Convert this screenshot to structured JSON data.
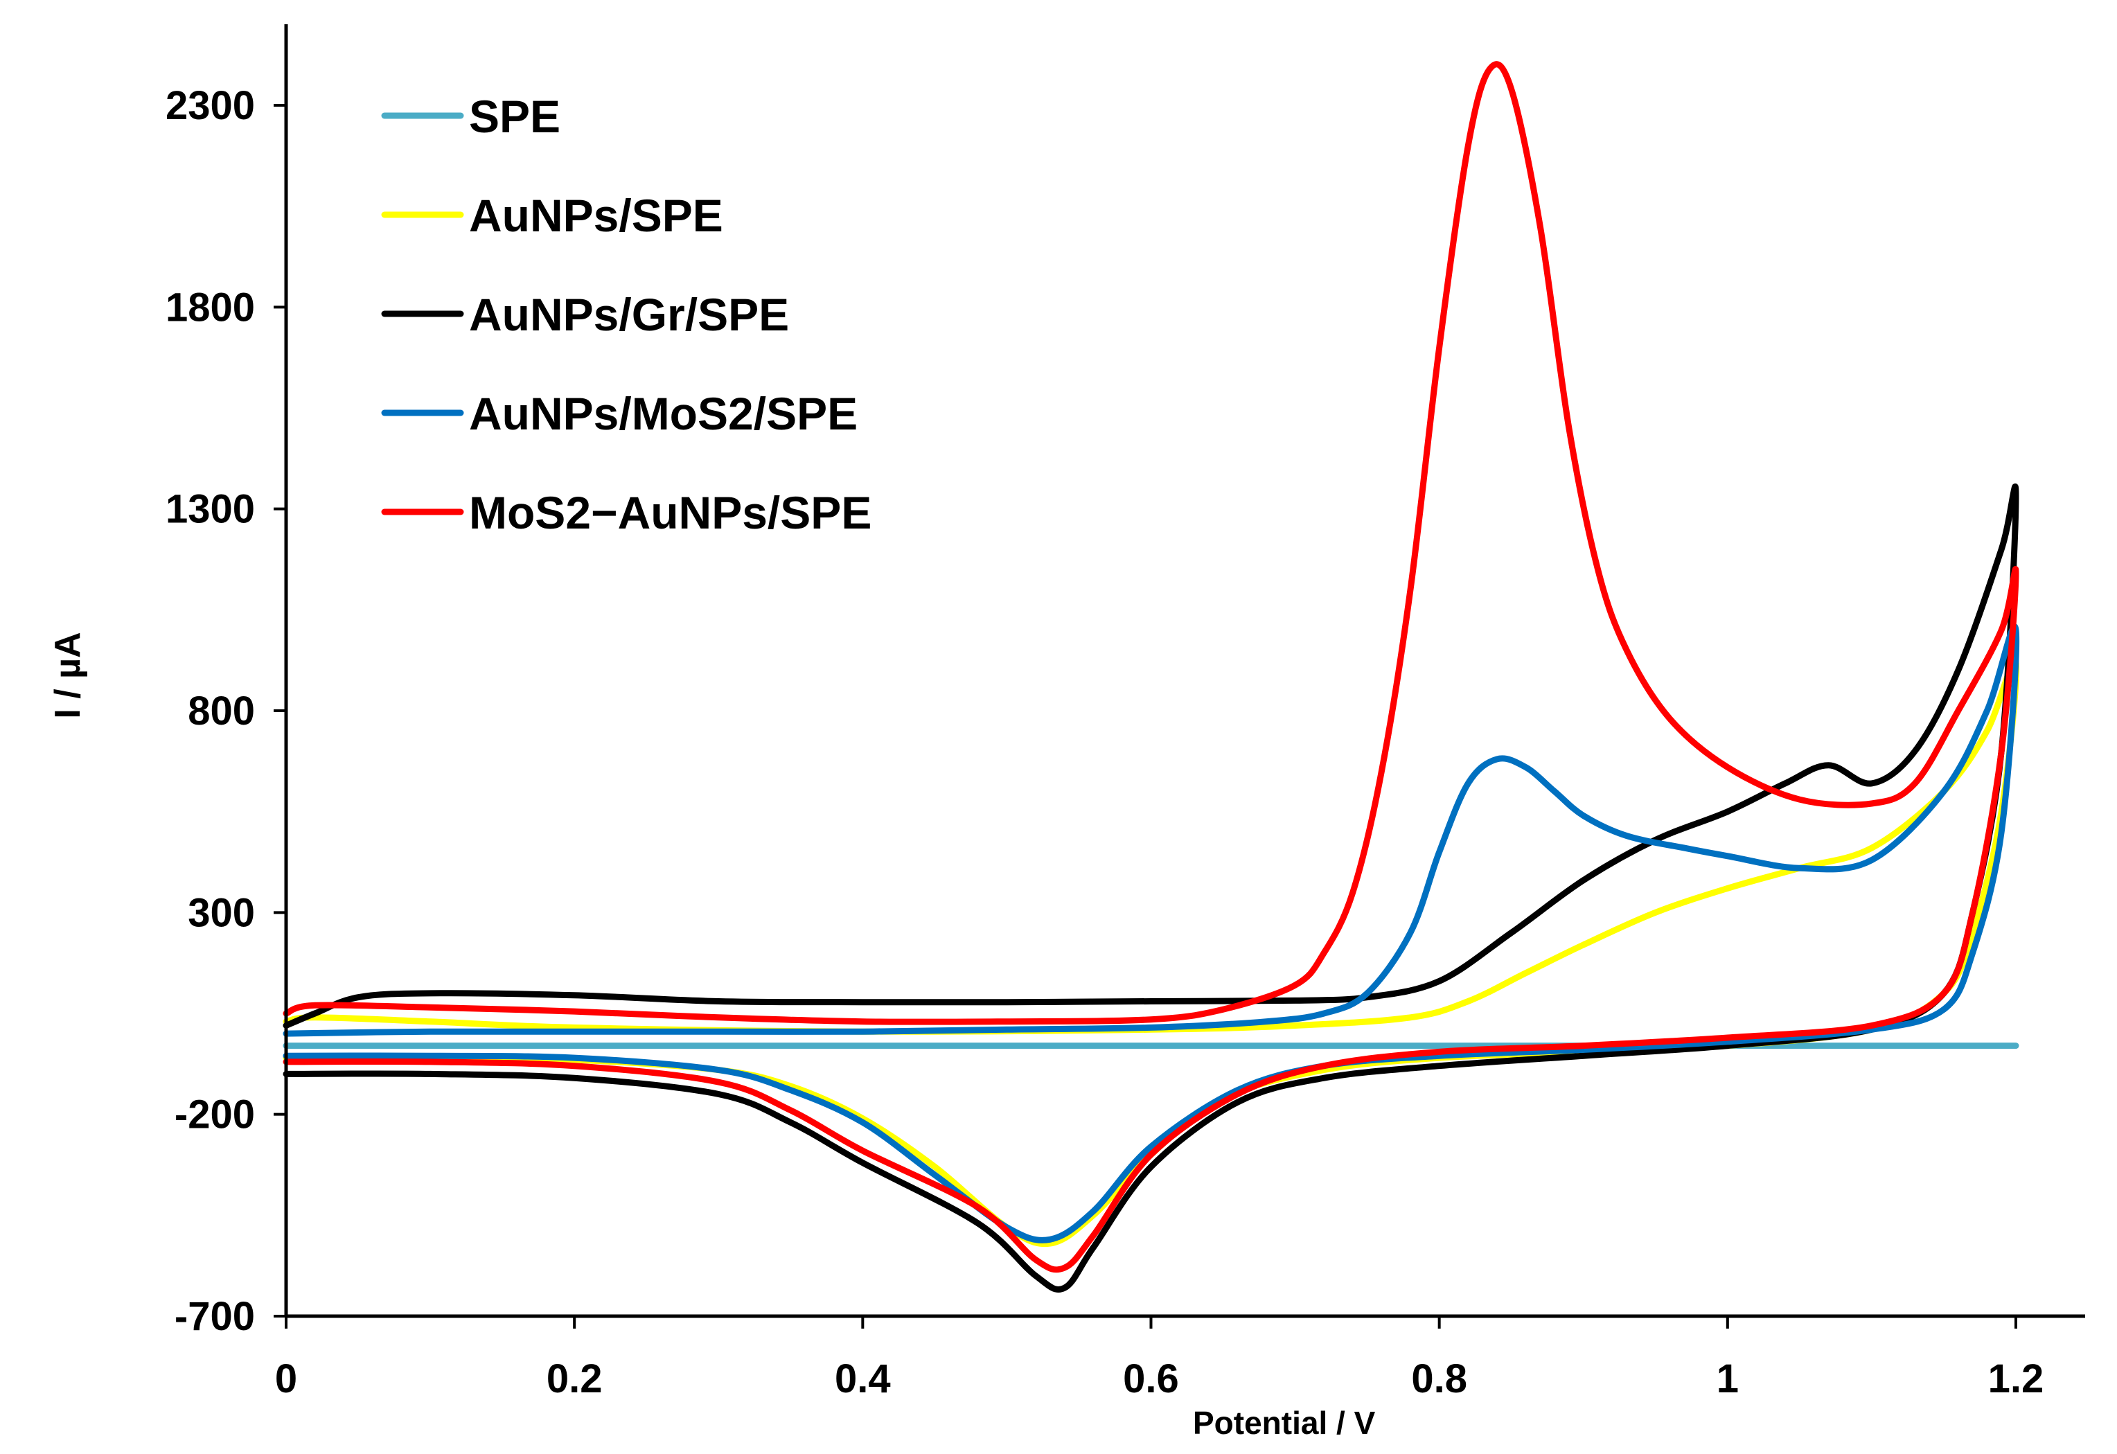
{
  "chart_data": {
    "type": "line",
    "title": "",
    "xlabel": "Potential / V",
    "ylabel": "I / µA",
    "xlim": [
      0,
      1.2
    ],
    "ylim": [
      -700,
      2500
    ],
    "x_ticks": [
      0,
      0.2,
      0.4,
      0.6,
      0.8,
      1,
      1.2
    ],
    "x_tick_labels": [
      "0",
      "0.2",
      "0.4",
      "0.6",
      "0.8",
      "1",
      "1.2"
    ],
    "y_ticks": [
      -700,
      -200,
      300,
      800,
      1300,
      1800,
      2300
    ],
    "y_tick_labels": [
      "-700",
      "-200",
      "300",
      "800",
      "1300",
      "1800",
      "2300"
    ],
    "grid": false,
    "legend_position": "top-left",
    "series": [
      {
        "name": "SPE",
        "color": "#4bacc6",
        "points": [
          [
            0,
            -30
          ],
          [
            0.3,
            -30
          ],
          [
            0.6,
            -30
          ],
          [
            0.9,
            -30
          ],
          [
            1.2,
            -30
          ]
        ]
      },
      {
        "name": "AuNPs/SPE",
        "color": "#ffff00",
        "points": [
          [
            0,
            30
          ],
          [
            0.02,
            40
          ],
          [
            0.1,
            30
          ],
          [
            0.2,
            15
          ],
          [
            0.4,
            5
          ],
          [
            0.6,
            10
          ],
          [
            0.7,
            20
          ],
          [
            0.78,
            40
          ],
          [
            0.82,
            80
          ],
          [
            0.86,
            150
          ],
          [
            0.9,
            220
          ],
          [
            0.95,
            300
          ],
          [
            1.0,
            360
          ],
          [
            1.05,
            410
          ],
          [
            1.1,
            460
          ],
          [
            1.15,
            600
          ],
          [
            1.18,
            750
          ],
          [
            1.2,
            920
          ],
          [
            1.19,
            550
          ],
          [
            1.17,
            250
          ],
          [
            1.15,
            100
          ],
          [
            1.1,
            10
          ],
          [
            1.0,
            -30
          ],
          [
            0.9,
            -45
          ],
          [
            0.8,
            -60
          ],
          [
            0.72,
            -90
          ],
          [
            0.65,
            -160
          ],
          [
            0.6,
            -300
          ],
          [
            0.56,
            -450
          ],
          [
            0.53,
            -520
          ],
          [
            0.5,
            -480
          ],
          [
            0.45,
            -330
          ],
          [
            0.4,
            -210
          ],
          [
            0.35,
            -130
          ],
          [
            0.3,
            -90
          ],
          [
            0.2,
            -65
          ],
          [
            0.1,
            -60
          ],
          [
            0,
            -60
          ]
        ]
      },
      {
        "name": "AuNPs/Gr/SPE",
        "color": "#000000",
        "points": [
          [
            0,
            20
          ],
          [
            0.02,
            50
          ],
          [
            0.05,
            90
          ],
          [
            0.1,
            100
          ],
          [
            0.2,
            95
          ],
          [
            0.3,
            80
          ],
          [
            0.4,
            78
          ],
          [
            0.5,
            78
          ],
          [
            0.6,
            80
          ],
          [
            0.7,
            82
          ],
          [
            0.75,
            90
          ],
          [
            0.8,
            130
          ],
          [
            0.85,
            250
          ],
          [
            0.9,
            380
          ],
          [
            0.95,
            480
          ],
          [
            1.0,
            550
          ],
          [
            1.04,
            620
          ],
          [
            1.07,
            665
          ],
          [
            1.1,
            620
          ],
          [
            1.13,
            700
          ],
          [
            1.16,
            900
          ],
          [
            1.19,
            1200
          ],
          [
            1.2,
            1330
          ],
          [
            1.19,
            700
          ],
          [
            1.17,
            300
          ],
          [
            1.15,
            100
          ],
          [
            1.1,
            10
          ],
          [
            1.0,
            -30
          ],
          [
            0.9,
            -55
          ],
          [
            0.8,
            -80
          ],
          [
            0.72,
            -110
          ],
          [
            0.66,
            -170
          ],
          [
            0.6,
            -330
          ],
          [
            0.56,
            -530
          ],
          [
            0.54,
            -630
          ],
          [
            0.52,
            -600
          ],
          [
            0.48,
            -470
          ],
          [
            0.4,
            -320
          ],
          [
            0.35,
            -220
          ],
          [
            0.3,
            -150
          ],
          [
            0.2,
            -110
          ],
          [
            0.1,
            -100
          ],
          [
            0,
            -100
          ]
        ]
      },
      {
        "name": "AuNPs/MoS2/SPE",
        "color": "#0070c0",
        "points": [
          [
            0,
            0
          ],
          [
            0.1,
            5
          ],
          [
            0.2,
            5
          ],
          [
            0.3,
            5
          ],
          [
            0.4,
            5
          ],
          [
            0.5,
            10
          ],
          [
            0.6,
            15
          ],
          [
            0.68,
            30
          ],
          [
            0.72,
            50
          ],
          [
            0.75,
            100
          ],
          [
            0.78,
            250
          ],
          [
            0.8,
            450
          ],
          [
            0.82,
            620
          ],
          [
            0.84,
            680
          ],
          [
            0.86,
            660
          ],
          [
            0.88,
            600
          ],
          [
            0.9,
            540
          ],
          [
            0.93,
            490
          ],
          [
            0.97,
            460
          ],
          [
            1.0,
            440
          ],
          [
            1.05,
            410
          ],
          [
            1.1,
            430
          ],
          [
            1.15,
            600
          ],
          [
            1.18,
            800
          ],
          [
            1.2,
            1000
          ],
          [
            1.19,
            500
          ],
          [
            1.17,
            200
          ],
          [
            1.15,
            60
          ],
          [
            1.1,
            10
          ],
          [
            1.0,
            -20
          ],
          [
            0.9,
            -40
          ],
          [
            0.8,
            -55
          ],
          [
            0.72,
            -80
          ],
          [
            0.66,
            -140
          ],
          [
            0.6,
            -280
          ],
          [
            0.56,
            -440
          ],
          [
            0.53,
            -510
          ],
          [
            0.5,
            -480
          ],
          [
            0.45,
            -350
          ],
          [
            0.4,
            -220
          ],
          [
            0.35,
            -140
          ],
          [
            0.3,
            -90
          ],
          [
            0.2,
            -60
          ],
          [
            0.1,
            -55
          ],
          [
            0,
            -55
          ]
        ]
      },
      {
        "name": "MoS2−AuNPs/SPE",
        "color": "#ff0000",
        "points": [
          [
            0,
            50
          ],
          [
            0.02,
            70
          ],
          [
            0.1,
            65
          ],
          [
            0.2,
            55
          ],
          [
            0.3,
            40
          ],
          [
            0.4,
            30
          ],
          [
            0.5,
            30
          ],
          [
            0.6,
            35
          ],
          [
            0.65,
            60
          ],
          [
            0.7,
            120
          ],
          [
            0.72,
            200
          ],
          [
            0.74,
            350
          ],
          [
            0.76,
            650
          ],
          [
            0.78,
            1100
          ],
          [
            0.8,
            1700
          ],
          [
            0.82,
            2200
          ],
          [
            0.835,
            2390
          ],
          [
            0.85,
            2340
          ],
          [
            0.87,
            2000
          ],
          [
            0.89,
            1500
          ],
          [
            0.91,
            1150
          ],
          [
            0.93,
            950
          ],
          [
            0.96,
            780
          ],
          [
            1.0,
            660
          ],
          [
            1.05,
            580
          ],
          [
            1.1,
            570
          ],
          [
            1.13,
            620
          ],
          [
            1.16,
            800
          ],
          [
            1.19,
            1000
          ],
          [
            1.2,
            1140
          ],
          [
            1.19,
            700
          ],
          [
            1.17,
            300
          ],
          [
            1.15,
            100
          ],
          [
            1.1,
            20
          ],
          [
            1.0,
            -10
          ],
          [
            0.9,
            -30
          ],
          [
            0.8,
            -45
          ],
          [
            0.72,
            -80
          ],
          [
            0.66,
            -150
          ],
          [
            0.6,
            -300
          ],
          [
            0.56,
            -500
          ],
          [
            0.54,
            -580
          ],
          [
            0.52,
            -560
          ],
          [
            0.48,
            -430
          ],
          [
            0.4,
            -290
          ],
          [
            0.35,
            -190
          ],
          [
            0.3,
            -120
          ],
          [
            0.2,
            -80
          ],
          [
            0.1,
            -70
          ],
          [
            0,
            -70
          ]
        ]
      }
    ]
  }
}
